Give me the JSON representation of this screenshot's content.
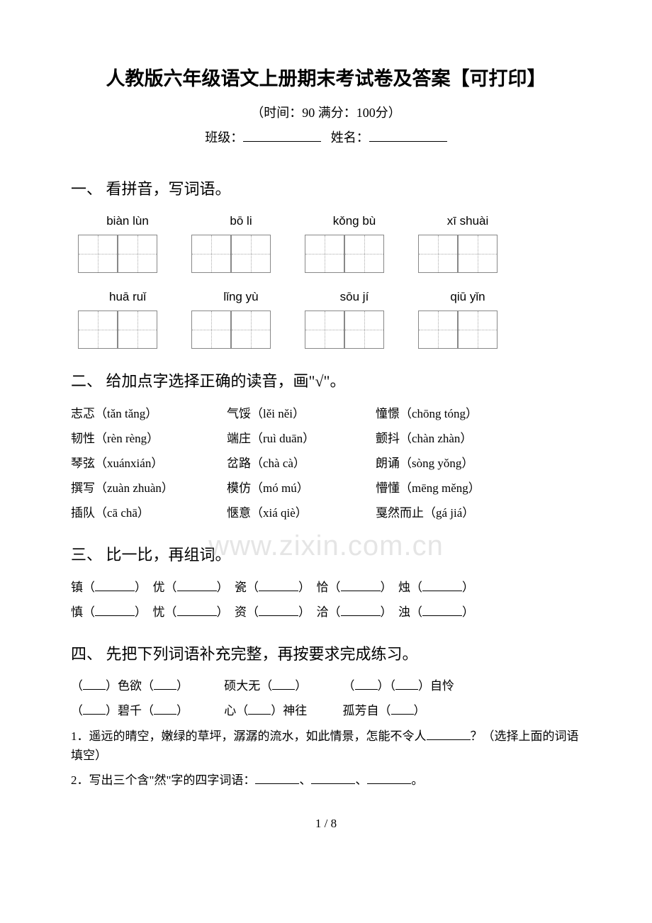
{
  "title": "人教版六年级语文上册期末考试卷及答案【可打印】",
  "subtitle": "（时间：90   满分：100分）",
  "info": {
    "class_label": "班级：",
    "name_label": "姓名："
  },
  "watermark": "www.zixin.com.cn",
  "section1": {
    "heading": "一、 看拼音，写词语。",
    "row1": [
      "biàn lùn",
      "bō li",
      "kǒng bù",
      "xī shuài"
    ],
    "row2": [
      "huā ruǐ",
      "lǐng yù",
      "sōu jí",
      "qiū yǐn"
    ]
  },
  "section2": {
    "heading": "二、 给加点字选择正确的读音，画\"√\"。",
    "rows": [
      [
        "志忑（tǎn tǎng）",
        "气馁（lěi něi）",
        "憧憬（chōng tóng）"
      ],
      [
        "韧性（rèn rèng）",
        "端庄（ruì duān）",
        "颤抖（chàn zhàn）"
      ],
      [
        "琴弦（xuánxián）",
        "岔路（chà cà）",
        "朗诵（sòng yǒng）"
      ],
      [
        "撰写（zuàn zhuàn）",
        "模仿（mó mú）",
        "懵懂（mēng měng）"
      ],
      [
        "插队（cā  chā）",
        "惬意（xiá qiè）",
        "戛然而止（gá jiá）"
      ]
    ]
  },
  "section3": {
    "heading": "三、 比一比，再组词。",
    "row1": [
      "镇",
      "优",
      "瓷",
      "恰",
      "烛"
    ],
    "row2": [
      "慎",
      "忧",
      "资",
      "洽",
      "浊"
    ]
  },
  "section4": {
    "heading": "四、 先把下列词语补充完整，再按要求完成练习。",
    "line1": {
      "a": "色欲",
      "b": "硕大无",
      "c": "自怜"
    },
    "line2": {
      "a": "碧千",
      "b": "心",
      "b2": "神往",
      "c": "孤芳自"
    },
    "q1": "1．遥远的晴空，嫩绿的草坪，潺潺的流水，如此情景，怎能不令人",
    "q1_tail": "？（选择上面的词语填空）",
    "q2": "2．写出三个含\"然\"字的四字词语："
  },
  "footer": "1 / 8"
}
